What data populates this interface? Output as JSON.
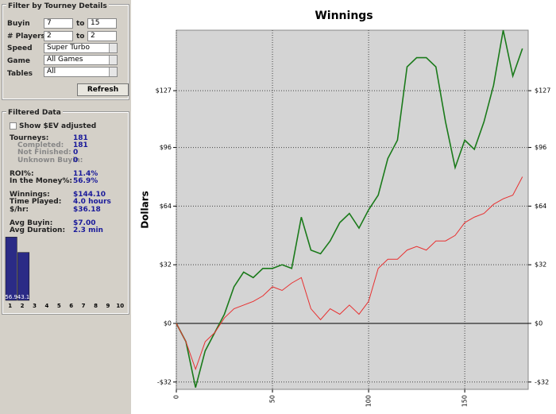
{
  "filter": {
    "title": "Filter by Tourney Details",
    "buyin": {
      "label": "Buyin",
      "from": "7",
      "to_label": "to",
      "to": "15"
    },
    "players": {
      "label": "# Players",
      "from": "2",
      "to_label": "to",
      "to": "2"
    },
    "speed": {
      "label": "Speed",
      "value": "Super Turbo"
    },
    "game": {
      "label": "Game",
      "value": "All Games"
    },
    "tables": {
      "label": "Tables",
      "value": "All"
    },
    "refresh": "Refresh"
  },
  "filtered_data": {
    "title": "Filtered Data",
    "checkbox": "Show $EV adjusted",
    "groups": [
      [
        {
          "label": "Tourneys:",
          "value": "181"
        },
        {
          "label": "Completed:",
          "value": "181"
        },
        {
          "label": "Not Finished:",
          "value": "0"
        },
        {
          "label": "Unknown Buyin:",
          "value": "0"
        }
      ],
      [
        {
          "label": "ROI%:",
          "value": "11.4%"
        },
        {
          "label": "In the Money%:",
          "value": "56.9%"
        }
      ],
      [
        {
          "label": "Winnings:",
          "value": "$144.10"
        },
        {
          "label": "Time Played:",
          "value": "4.0 hours"
        },
        {
          "label": "$/hr:",
          "value": "$36.18"
        }
      ],
      [
        {
          "label": "Avg Buyin:",
          "value": "$7.00"
        },
        {
          "label": "Avg Duration:",
          "value": "2.3 min"
        }
      ]
    ]
  },
  "chart_data": [
    {
      "type": "line",
      "title": "Winnings",
      "y_label": "Dollars",
      "x": [
        0,
        5,
        10,
        15,
        20,
        25,
        30,
        35,
        40,
        45,
        50,
        55,
        60,
        65,
        70,
        75,
        80,
        85,
        90,
        95,
        100,
        105,
        110,
        115,
        120,
        125,
        130,
        135,
        140,
        145,
        150,
        155,
        160,
        165,
        170,
        175,
        180
      ],
      "series": [
        {
          "color": "#1a7a1a",
          "values": [
            0,
            -10,
            -35,
            -15,
            -5,
            5,
            20,
            28,
            25,
            30,
            30,
            32,
            30,
            58,
            40,
            38,
            45,
            55,
            60,
            52,
            62,
            70,
            90,
            100,
            140,
            145,
            145,
            140,
            110,
            85,
            100,
            95,
            110,
            130,
            160,
            135,
            150
          ]
        },
        {
          "color": "#e83030",
          "values": [
            0,
            -10,
            -25,
            -10,
            -5,
            3,
            8,
            10,
            12,
            15,
            20,
            18,
            22,
            25,
            8,
            2,
            8,
            5,
            10,
            5,
            12,
            30,
            35,
            35,
            40,
            42,
            40,
            45,
            45,
            48,
            55,
            58,
            60,
            65,
            68,
            70,
            80
          ]
        }
      ],
      "xlim": [
        0,
        183
      ],
      "ylim": [
        -36,
        160
      ],
      "xticks": [
        0,
        50,
        100,
        150
      ],
      "yticks": [
        {
          "value": -32,
          "label": "-$32"
        },
        {
          "value": 0,
          "label": "$0"
        },
        {
          "value": 32,
          "label": "$32"
        },
        {
          "value": 64,
          "label": "$64"
        },
        {
          "value": 96,
          "label": "$96"
        },
        {
          "value": 127,
          "label": "$127"
        }
      ],
      "grid": true
    },
    {
      "type": "bar",
      "categories": [
        "1",
        "2",
        "3",
        "4",
        "5",
        "6",
        "7",
        "8",
        "9",
        "10"
      ],
      "values": [
        56.9,
        43.1,
        0,
        0,
        0,
        0,
        0,
        0,
        0,
        0
      ],
      "color": "#2b2b86",
      "ylim": [
        0,
        60
      ]
    }
  ]
}
